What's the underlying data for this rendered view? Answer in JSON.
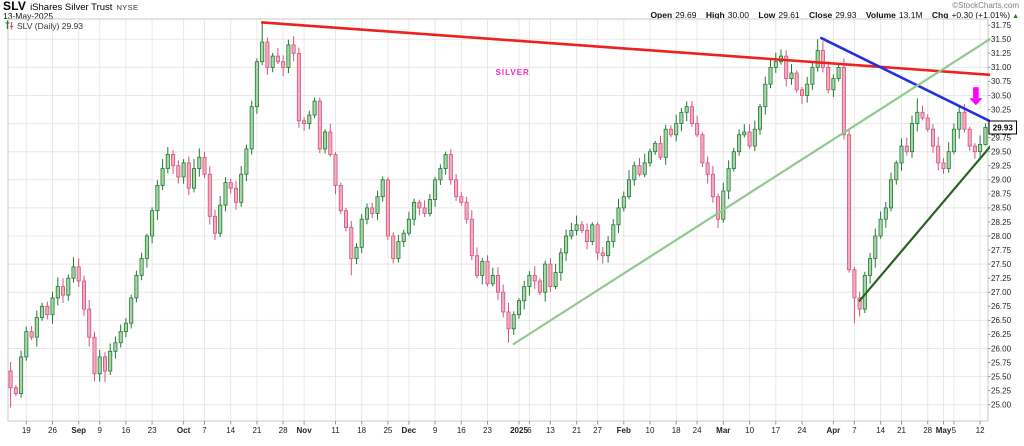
{
  "header": {
    "symbol": "SLV",
    "name": "iShares Silver Trust",
    "exchange": "NYSE",
    "date": "13-May-2025",
    "copyright": "©StockCharts.com",
    "quote": {
      "open_label": "Open",
      "open": "29.69",
      "high_label": "High",
      "high": "30.00",
      "low_label": "Low",
      "low": "29.61",
      "close_label": "Close",
      "close": "29.93",
      "volume_label": "Volume",
      "volume": "13.1M",
      "chg_label": "Chg",
      "chg": "+0.30 (+1.01%)",
      "chg_direction": "up"
    }
  },
  "legend": {
    "text": "SLV (Daily) 29.93"
  },
  "chart_data": {
    "type": "candlestick",
    "title": "SLV (Daily)",
    "last_close_label": "29.93",
    "ylim": [
      24.71,
      31.86
    ],
    "y_ticks": [
      "25.00",
      "25.25",
      "25.50",
      "25.75",
      "26.00",
      "26.25",
      "26.50",
      "26.75",
      "27.00",
      "27.25",
      "27.50",
      "27.75",
      "28.00",
      "28.25",
      "28.50",
      "28.75",
      "29.00",
      "29.25",
      "29.50",
      "29.75",
      "30.00",
      "30.25",
      "30.50",
      "30.75",
      "31.00",
      "31.25",
      "31.50",
      "31.75"
    ],
    "y_gridline_step": 0.5,
    "x_ticks": [
      [
        3,
        "19",
        0
      ],
      [
        8,
        "26",
        0
      ],
      [
        13,
        "Sep",
        1
      ],
      [
        17,
        "9",
        0
      ],
      [
        22,
        "16",
        0
      ],
      [
        27,
        "23",
        0
      ],
      [
        33,
        "Oct",
        1
      ],
      [
        37,
        "7",
        0
      ],
      [
        42,
        "14",
        0
      ],
      [
        47,
        "21",
        0
      ],
      [
        52,
        "28",
        0
      ],
      [
        56,
        "Nov",
        1
      ],
      [
        62,
        "11",
        0
      ],
      [
        67,
        "18",
        0
      ],
      [
        72,
        "25",
        0
      ],
      [
        76,
        "Dec",
        1
      ],
      [
        81,
        "9",
        0
      ],
      [
        86,
        "16",
        0
      ],
      [
        91,
        "23",
        0
      ],
      [
        97,
        "2025",
        1
      ],
      [
        99,
        "6",
        0
      ],
      [
        103,
        "13",
        0
      ],
      [
        108,
        "21",
        0
      ],
      [
        112,
        "27",
        0
      ],
      [
        117,
        "Feb",
        1
      ],
      [
        122,
        "10",
        0
      ],
      [
        127,
        "18",
        0
      ],
      [
        131,
        "24",
        0
      ],
      [
        136,
        "Mar",
        1
      ],
      [
        141,
        "10",
        0
      ],
      [
        146,
        "17",
        0
      ],
      [
        151,
        "24",
        0
      ],
      [
        157,
        "Apr",
        1
      ],
      [
        161,
        "7",
        0
      ],
      [
        166,
        "14",
        0
      ],
      [
        170,
        "21",
        0
      ],
      [
        175,
        "28",
        0
      ],
      [
        178,
        "May",
        1
      ],
      [
        180,
        "5",
        0
      ],
      [
        185,
        "12",
        0
      ]
    ],
    "first_open": 25.6,
    "closes": [
      25.3,
      25.2,
      25.85,
      26.3,
      26.2,
      26.55,
      26.75,
      26.6,
      26.9,
      27.1,
      26.95,
      27.25,
      27.45,
      27.2,
      26.7,
      26.2,
      25.55,
      25.85,
      25.6,
      25.95,
      26.1,
      26.3,
      26.45,
      26.9,
      27.3,
      27.6,
      28.0,
      28.45,
      28.9,
      29.2,
      29.45,
      29.25,
      29.05,
      29.3,
      28.85,
      29.2,
      29.4,
      29.1,
      28.35,
      28.05,
      28.55,
      28.95,
      28.85,
      28.6,
      29.1,
      29.55,
      30.3,
      31.1,
      31.45,
      31.0,
      31.2,
      31.1,
      31.0,
      31.4,
      31.25,
      30.05,
      30.0,
      30.15,
      30.4,
      29.55,
      29.85,
      29.45,
      28.9,
      28.45,
      28.15,
      27.6,
      27.8,
      28.3,
      28.5,
      28.4,
      28.7,
      29.0,
      28.0,
      27.6,
      27.9,
      28.05,
      28.3,
      28.6,
      28.5,
      28.4,
      28.65,
      29.0,
      29.2,
      29.45,
      29.0,
      28.7,
      28.6,
      28.3,
      27.65,
      27.3,
      27.55,
      27.15,
      27.3,
      27.0,
      26.65,
      26.35,
      26.6,
      26.85,
      27.1,
      27.3,
      27.2,
      27.0,
      27.5,
      27.1,
      27.35,
      27.7,
      28.0,
      28.1,
      28.2,
      28.1,
      27.9,
      28.2,
      27.7,
      27.65,
      27.9,
      28.2,
      28.5,
      28.7,
      29.0,
      29.25,
      29.1,
      29.3,
      29.5,
      29.65,
      29.4,
      29.9,
      29.8,
      30.0,
      30.2,
      30.3,
      30.0,
      29.8,
      29.3,
      29.1,
      28.7,
      28.3,
      28.8,
      29.2,
      29.5,
      29.8,
      29.85,
      29.6,
      29.9,
      30.3,
      30.7,
      31.0,
      31.1,
      31.2,
      30.8,
      30.9,
      30.6,
      30.5,
      30.7,
      31.0,
      31.3,
      31.0,
      30.6,
      30.8,
      31.0,
      29.8,
      27.4,
      26.9,
      26.7,
      27.3,
      27.6,
      28.0,
      28.3,
      28.5,
      29.0,
      29.3,
      29.6,
      29.5,
      30.0,
      30.2,
      30.1,
      29.9,
      29.6,
      29.3,
      29.2,
      29.5,
      29.9,
      30.2,
      29.9,
      29.6,
      29.5,
      29.63,
      29.93
    ],
    "extremes": [
      [
        0,
        null,
        24.95
      ],
      [
        18,
        null,
        25.4
      ],
      [
        48,
        31.8,
        null
      ],
      [
        65,
        null,
        27.3
      ],
      [
        95,
        null,
        26.1
      ],
      [
        130,
        30.4,
        null
      ],
      [
        154,
        31.5,
        null
      ],
      [
        161,
        null,
        26.45
      ],
      [
        173,
        30.45,
        null
      ],
      [
        181,
        30.32,
        null
      ],
      [
        186,
        30.0,
        29.61
      ]
    ],
    "trendlines": [
      {
        "name": "trendline-red-resistance",
        "color": "#ee2020",
        "width": 2.6,
        "from": [
          48,
          31.8
        ],
        "to": [
          188,
          30.86
        ]
      },
      {
        "name": "trendline-blue-resistance",
        "color": "#2230dd",
        "width": 2.6,
        "from": [
          154.7,
          31.52
        ],
        "to": [
          187.8,
          30.0
        ]
      },
      {
        "name": "trendline-lightgreen-support",
        "color": "#8fca8f",
        "width": 2.2,
        "from": [
          96,
          26.08
        ],
        "to": [
          188,
          31.57
        ]
      },
      {
        "name": "trendline-darkgreen-support",
        "color": "#27641f",
        "width": 2.2,
        "from": [
          162,
          26.85
        ],
        "to": [
          189,
          29.82
        ]
      }
    ],
    "annotations": {
      "silver_label": {
        "text": "SILVER",
        "day": 95.8,
        "price": 30.92,
        "color": "#ff22cc"
      },
      "down_arrow": {
        "day": 184.2,
        "price": 30.47,
        "color": "#ff00ff"
      },
      "last_price_tag": {
        "text": "29.93",
        "price": 29.93
      }
    },
    "colors": {
      "up_stroke": "#1e7b31",
      "up_fill": "#a8d5a8",
      "down_stroke": "#d4537a",
      "down_fill": "#f3abc0",
      "grid": "#e8e8e8",
      "border": "#c8c8c8",
      "axis_line": "#999999",
      "axis_text": "#222222"
    }
  }
}
